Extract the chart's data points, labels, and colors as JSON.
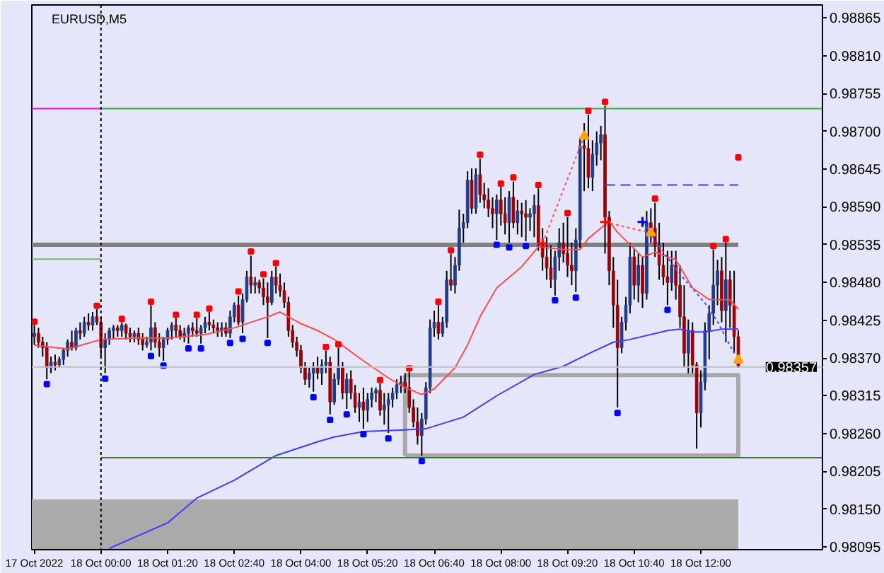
{
  "chart_data": {
    "type": "candlestick",
    "title": "EURUSD,M5",
    "xlim": [
      "2022-10-17T22:37",
      "2022-10-18T14:26"
    ],
    "xticks": [
      {
        "value": "2022-10-17T22:40",
        "label": "17 Oct 2022"
      },
      {
        "value": "2022-10-18T00:00",
        "label": "18 Oct 00:00"
      },
      {
        "value": "2022-10-18T01:20",
        "label": "18 Oct 01:20"
      },
      {
        "value": "2022-10-18T02:40",
        "label": "18 Oct 02:40"
      },
      {
        "value": "2022-10-18T04:00",
        "label": "18 Oct 04:00"
      },
      {
        "value": "2022-10-18T05:20",
        "label": "18 Oct 05:20"
      },
      {
        "value": "2022-10-18T06:40",
        "label": "18 Oct 06:40"
      },
      {
        "value": "2022-10-18T08:00",
        "label": "18 Oct 08:00"
      },
      {
        "value": "2022-10-18T09:20",
        "label": "18 Oct 09:20"
      },
      {
        "value": "2022-10-18T10:40",
        "label": "18 Oct 10:40"
      },
      {
        "value": "2022-10-18T12:00",
        "label": "18 Oct 12:00"
      }
    ],
    "ylim": [
      0.98091,
      0.98884
    ],
    "yticks": [
      {
        "value": 0.98095,
        "label": "0.98095"
      },
      {
        "value": 0.9815,
        "label": "0.98150"
      },
      {
        "value": 0.98205,
        "label": "0.98205"
      },
      {
        "value": 0.9826,
        "label": "0.98260"
      },
      {
        "value": 0.98315,
        "label": "0.98315"
      },
      {
        "value": 0.9837,
        "label": "0.98370"
      },
      {
        "value": 0.98425,
        "label": "0.98425"
      },
      {
        "value": 0.9848,
        "label": "0.98480"
      },
      {
        "value": 0.98535,
        "label": "0.98535"
      },
      {
        "value": 0.9859,
        "label": "0.98590"
      },
      {
        "value": 0.98645,
        "label": "0.98645"
      },
      {
        "value": 0.987,
        "label": "0.98700"
      },
      {
        "value": 0.98755,
        "label": "0.98755"
      },
      {
        "value": 0.9881,
        "label": "0.98810"
      },
      {
        "value": 0.98865,
        "label": "0.98865"
      }
    ],
    "ref_lines": [
      {
        "axis": "y",
        "value": 0.98357,
        "label": "0.98357",
        "color": "#c0c0c0"
      },
      {
        "axis": "x",
        "value": "2022-10-18T00:00",
        "color": "#000000",
        "line_style": "dotted"
      }
    ],
    "series": [
      {
        "color": "#000000",
        "x": [
          "2022-10-17T22:40",
          "2022-10-17T22:45",
          "2022-10-17T22:50",
          "2022-10-17T22:55",
          "2022-10-17T23:00",
          "2022-10-17T23:05",
          "2022-10-17T23:10",
          "2022-10-17T23:15",
          "2022-10-17T23:20",
          "2022-10-17T23:25",
          "2022-10-17T23:30",
          "2022-10-17T23:35",
          "2022-10-17T23:40",
          "2022-10-17T23:45",
          "2022-10-17T23:50",
          "2022-10-17T23:55",
          "2022-10-18T00:00",
          "2022-10-18T00:05",
          "2022-10-18T00:10",
          "2022-10-18T00:15",
          "2022-10-18T00:20",
          "2022-10-18T00:25",
          "2022-10-18T00:30",
          "2022-10-18T00:35",
          "2022-10-18T00:40",
          "2022-10-18T00:45",
          "2022-10-18T00:50",
          "2022-10-18T00:55",
          "2022-10-18T01:00",
          "2022-10-18T01:05",
          "2022-10-18T01:10",
          "2022-10-18T01:15",
          "2022-10-18T01:20",
          "2022-10-18T01:25",
          "2022-10-18T01:30",
          "2022-10-18T01:35",
          "2022-10-18T01:40",
          "2022-10-18T01:45",
          "2022-10-18T01:50",
          "2022-10-18T01:55",
          "2022-10-18T02:00",
          "2022-10-18T02:05",
          "2022-10-18T02:10",
          "2022-10-18T02:15",
          "2022-10-18T02:20",
          "2022-10-18T02:25",
          "2022-10-18T02:30",
          "2022-10-18T02:35",
          "2022-10-18T02:40",
          "2022-10-18T02:45",
          "2022-10-18T02:50",
          "2022-10-18T02:55",
          "2022-10-18T03:00",
          "2022-10-18T03:05",
          "2022-10-18T03:10",
          "2022-10-18T03:15",
          "2022-10-18T03:20",
          "2022-10-18T03:25",
          "2022-10-18T03:30",
          "2022-10-18T03:35",
          "2022-10-18T03:40",
          "2022-10-18T03:45",
          "2022-10-18T03:50",
          "2022-10-18T03:55",
          "2022-10-18T04:00",
          "2022-10-18T04:05",
          "2022-10-18T04:10",
          "2022-10-18T04:15",
          "2022-10-18T04:20",
          "2022-10-18T04:25",
          "2022-10-18T04:30",
          "2022-10-18T04:35",
          "2022-10-18T04:40",
          "2022-10-18T04:45",
          "2022-10-18T04:50",
          "2022-10-18T04:55",
          "2022-10-18T05:00",
          "2022-10-18T05:05",
          "2022-10-18T05:10",
          "2022-10-18T05:15",
          "2022-10-18T05:20",
          "2022-10-18T05:25",
          "2022-10-18T05:30",
          "2022-10-18T05:35",
          "2022-10-18T05:40",
          "2022-10-18T05:45",
          "2022-10-18T05:50",
          "2022-10-18T05:55",
          "2022-10-18T06:00",
          "2022-10-18T06:05",
          "2022-10-18T06:10",
          "2022-10-18T06:15",
          "2022-10-18T06:20",
          "2022-10-18T06:25",
          "2022-10-18T06:30",
          "2022-10-18T06:35",
          "2022-10-18T06:40",
          "2022-10-18T06:45",
          "2022-10-18T06:50",
          "2022-10-18T06:55",
          "2022-10-18T07:00",
          "2022-10-18T07:05",
          "2022-10-18T07:10",
          "2022-10-18T07:15",
          "2022-10-18T07:20",
          "2022-10-18T07:25",
          "2022-10-18T07:30",
          "2022-10-18T07:35",
          "2022-10-18T07:40",
          "2022-10-18T07:45",
          "2022-10-18T07:50",
          "2022-10-18T07:55",
          "2022-10-18T08:00",
          "2022-10-18T08:05",
          "2022-10-18T08:10",
          "2022-10-18T08:15",
          "2022-10-18T08:20",
          "2022-10-18T08:25",
          "2022-10-18T08:30",
          "2022-10-18T08:35",
          "2022-10-18T08:40",
          "2022-10-18T08:45",
          "2022-10-18T08:50",
          "2022-10-18T08:55",
          "2022-10-18T09:00",
          "2022-10-18T09:05",
          "2022-10-18T09:10",
          "2022-10-18T09:15",
          "2022-10-18T09:20",
          "2022-10-18T09:25",
          "2022-10-18T09:30",
          "2022-10-18T09:35",
          "2022-10-18T09:40",
          "2022-10-18T09:45",
          "2022-10-18T09:50",
          "2022-10-18T09:55",
          "2022-10-18T10:00",
          "2022-10-18T10:05",
          "2022-10-18T10:10",
          "2022-10-18T10:15",
          "2022-10-18T10:20",
          "2022-10-18T10:25",
          "2022-10-18T10:30",
          "2022-10-18T10:35",
          "2022-10-18T10:40",
          "2022-10-18T10:45",
          "2022-10-18T10:50",
          "2022-10-18T10:55",
          "2022-10-18T11:00",
          "2022-10-18T11:05",
          "2022-10-18T11:10",
          "2022-10-18T11:15",
          "2022-10-18T11:20",
          "2022-10-18T11:25",
          "2022-10-18T11:30",
          "2022-10-18T11:35",
          "2022-10-18T11:40",
          "2022-10-18T11:45",
          "2022-10-18T11:50",
          "2022-10-18T11:55",
          "2022-10-18T12:00",
          "2022-10-18T12:05",
          "2022-10-18T12:10",
          "2022-10-18T12:15",
          "2022-10-18T12:20",
          "2022-10-18T12:25",
          "2022-10-18T12:30",
          "2022-10-18T12:35",
          "2022-10-18T12:40",
          "2022-10-18T12:45"
        ],
        "ohlc": [
          [
            0.98401,
            0.98418,
            0.98389,
            0.98406
          ],
          [
            0.98406,
            0.98414,
            0.98385,
            0.98393
          ],
          [
            0.98393,
            0.98401,
            0.98372,
            0.98385
          ],
          [
            0.98385,
            0.98393,
            0.98339,
            0.98356
          ],
          [
            0.98356,
            0.98372,
            0.98348,
            0.98364
          ],
          [
            0.98364,
            0.98375,
            0.98352,
            0.9836
          ],
          [
            0.9836,
            0.98372,
            0.98356,
            0.98368
          ],
          [
            0.98368,
            0.98385,
            0.9836,
            0.98381
          ],
          [
            0.98381,
            0.98397,
            0.98372,
            0.98393
          ],
          [
            0.98393,
            0.9841,
            0.98381,
            0.98385
          ],
          [
            0.98385,
            0.98414,
            0.98381,
            0.9841
          ],
          [
            0.9841,
            0.98422,
            0.98397,
            0.98406
          ],
          [
            0.98406,
            0.9843,
            0.98401,
            0.98422
          ],
          [
            0.98422,
            0.98435,
            0.9841,
            0.98418
          ],
          [
            0.98418,
            0.98437,
            0.9841,
            0.9843
          ],
          [
            0.9843,
            0.98441,
            0.98418,
            0.98422
          ],
          [
            0.98422,
            0.9843,
            0.98372,
            0.98385
          ],
          [
            0.98385,
            0.98406,
            0.98348,
            0.98397
          ],
          [
            0.98397,
            0.98414,
            0.98389,
            0.9841
          ],
          [
            0.9841,
            0.98418,
            0.98397,
            0.98414
          ],
          [
            0.98414,
            0.98418,
            0.98401,
            0.9841
          ],
          [
            0.9841,
            0.98422,
            0.98401,
            0.98418
          ],
          [
            0.98418,
            0.9842,
            0.98397,
            0.98406
          ],
          [
            0.98406,
            0.98414,
            0.98393,
            0.98401
          ],
          [
            0.98401,
            0.9841,
            0.98393,
            0.98406
          ],
          [
            0.98406,
            0.98414,
            0.98389,
            0.98397
          ],
          [
            0.98397,
            0.98406,
            0.98381,
            0.98389
          ],
          [
            0.98389,
            0.98401,
            0.98385,
            0.98393
          ],
          [
            0.98393,
            0.98447,
            0.98381,
            0.98414
          ],
          [
            0.98414,
            0.98422,
            0.98385,
            0.98393
          ],
          [
            0.98393,
            0.98406,
            0.98372,
            0.98385
          ],
          [
            0.98385,
            0.98401,
            0.98366,
            0.98397
          ],
          [
            0.98397,
            0.98414,
            0.98389,
            0.9841
          ],
          [
            0.9841,
            0.98422,
            0.98397,
            0.98418
          ],
          [
            0.98418,
            0.98428,
            0.98401,
            0.9841
          ],
          [
            0.9841,
            0.98418,
            0.98397,
            0.98401
          ],
          [
            0.98401,
            0.98414,
            0.98393,
            0.98406
          ],
          [
            0.98406,
            0.98418,
            0.98391,
            0.98414
          ],
          [
            0.98414,
            0.98422,
            0.98401,
            0.9841
          ],
          [
            0.9841,
            0.98428,
            0.98401,
            0.98406
          ],
          [
            0.98406,
            0.98418,
            0.98391,
            0.98414
          ],
          [
            0.98414,
            0.9843,
            0.98406,
            0.98422
          ],
          [
            0.98422,
            0.98437,
            0.9841,
            0.98418
          ],
          [
            0.98418,
            0.98426,
            0.98406,
            0.98414
          ],
          [
            0.98414,
            0.98422,
            0.98401,
            0.9841
          ],
          [
            0.9841,
            0.98422,
            0.98401,
            0.98414
          ],
          [
            0.98414,
            0.98422,
            0.98401,
            0.98406
          ],
          [
            0.98406,
            0.98439,
            0.98399,
            0.9843
          ],
          [
            0.9843,
            0.98451,
            0.98422,
            0.98447
          ],
          [
            0.98447,
            0.98461,
            0.98418,
            0.98422
          ],
          [
            0.98422,
            0.98464,
            0.98406,
            0.98455
          ],
          [
            0.98455,
            0.98497,
            0.98451,
            0.98488
          ],
          [
            0.98488,
            0.98519,
            0.98464,
            0.98476
          ],
          [
            0.98476,
            0.98488,
            0.98464,
            0.9848
          ],
          [
            0.9848,
            0.98484,
            0.98464,
            0.98472
          ],
          [
            0.98472,
            0.98486,
            0.98447,
            0.98459
          ],
          [
            0.98459,
            0.9848,
            0.98399,
            0.98451
          ],
          [
            0.98451,
            0.98497,
            0.98447,
            0.98488
          ],
          [
            0.98488,
            0.98503,
            0.98464,
            0.98476
          ],
          [
            0.98476,
            0.98493,
            0.98459,
            0.98468
          ],
          [
            0.98468,
            0.9848,
            0.98443,
            0.98451
          ],
          [
            0.98451,
            0.98459,
            0.98401,
            0.9841
          ],
          [
            0.9841,
            0.98418,
            0.98385,
            0.98393
          ],
          [
            0.98393,
            0.98401,
            0.98372,
            0.98381
          ],
          [
            0.98381,
            0.98389,
            0.98348,
            0.98356
          ],
          [
            0.98356,
            0.98364,
            0.98331,
            0.98339
          ],
          [
            0.98339,
            0.98356,
            0.98327,
            0.98348
          ],
          [
            0.98348,
            0.98364,
            0.98321,
            0.98356
          ],
          [
            0.98356,
            0.98372,
            0.98339,
            0.98348
          ],
          [
            0.98348,
            0.98368,
            0.98331,
            0.9836
          ],
          [
            0.9836,
            0.98381,
            0.98348,
            0.98364
          ],
          [
            0.98364,
            0.98372,
            0.98288,
            0.98306
          ],
          [
            0.98306,
            0.98348,
            0.98302,
            0.98339
          ],
          [
            0.98339,
            0.98385,
            0.98331,
            0.98356
          ],
          [
            0.98356,
            0.98364,
            0.9831,
            0.98319
          ],
          [
            0.98319,
            0.98348,
            0.98296,
            0.98339
          ],
          [
            0.98339,
            0.98352,
            0.9831,
            0.98319
          ],
          [
            0.98319,
            0.98331,
            0.9829,
            0.98298
          ],
          [
            0.98298,
            0.98319,
            0.98277,
            0.98306
          ],
          [
            0.98306,
            0.98327,
            0.98267,
            0.98294
          ],
          [
            0.98294,
            0.98319,
            0.98277,
            0.9831
          ],
          [
            0.9831,
            0.98327,
            0.98298,
            0.98319
          ],
          [
            0.98319,
            0.98327,
            0.98306,
            0.98323
          ],
          [
            0.98323,
            0.98333,
            0.98286,
            0.98294
          ],
          [
            0.98294,
            0.98319,
            0.98273,
            0.98302
          ],
          [
            0.98302,
            0.98319,
            0.98261,
            0.9831
          ],
          [
            0.9831,
            0.98327,
            0.98298,
            0.98319
          ],
          [
            0.98319,
            0.98339,
            0.9831,
            0.98331
          ],
          [
            0.98331,
            0.98344,
            0.98319,
            0.98335
          ],
          [
            0.98335,
            0.98348,
            0.98319,
            0.98327
          ],
          [
            0.98327,
            0.9835,
            0.9829,
            0.98298
          ],
          [
            0.98298,
            0.9831,
            0.98269,
            0.98277
          ],
          [
            0.98277,
            0.98298,
            0.98244,
            0.98257
          ],
          [
            0.98257,
            0.9829,
            0.98228,
            0.98281
          ],
          [
            0.98281,
            0.98335,
            0.98273,
            0.98327
          ],
          [
            0.98327,
            0.98426,
            0.98319,
            0.98414
          ],
          [
            0.98414,
            0.98439,
            0.98401,
            0.98422
          ],
          [
            0.98422,
            0.98447,
            0.98397,
            0.98406
          ],
          [
            0.98406,
            0.9843,
            0.98401,
            0.98422
          ],
          [
            0.98422,
            0.98497,
            0.98414,
            0.98484
          ],
          [
            0.98484,
            0.98522,
            0.98468,
            0.98476
          ],
          [
            0.98476,
            0.98517,
            0.98464,
            0.98505
          ],
          [
            0.98505,
            0.98586,
            0.98497,
            0.98559
          ],
          [
            0.98559,
            0.9858,
            0.98538,
            0.98567
          ],
          [
            0.98567,
            0.98642,
            0.98559,
            0.98629
          ],
          [
            0.98629,
            0.98646,
            0.9858,
            0.98588
          ],
          [
            0.98588,
            0.98646,
            0.9858,
            0.98637
          ],
          [
            0.98637,
            0.9866,
            0.98596,
            0.98608
          ],
          [
            0.98608,
            0.98625,
            0.98588,
            0.986
          ],
          [
            0.986,
            0.98617,
            0.98575,
            0.98588
          ],
          [
            0.98588,
            0.98604,
            0.98559,
            0.9858
          ],
          [
            0.9858,
            0.98608,
            0.98542,
            0.986
          ],
          [
            0.986,
            0.98619,
            0.98563,
            0.9858
          ],
          [
            0.9858,
            0.98604,
            0.9855,
            0.98567
          ],
          [
            0.98567,
            0.98613,
            0.98538,
            0.98604
          ],
          [
            0.98604,
            0.98627,
            0.98559,
            0.98567
          ],
          [
            0.98567,
            0.986,
            0.9855,
            0.98584
          ],
          [
            0.98584,
            0.98596,
            0.98546,
            0.9858
          ],
          [
            0.9858,
            0.986,
            0.9854,
            0.98575
          ],
          [
            0.98575,
            0.98588,
            0.98555,
            0.9858
          ],
          [
            0.9858,
            0.98608,
            0.98546,
            0.98592
          ],
          [
            0.98592,
            0.98617,
            0.98526,
            0.98538
          ],
          [
            0.98538,
            0.98559,
            0.98497,
            0.98517
          ],
          [
            0.98517,
            0.98546,
            0.98484,
            0.98501
          ],
          [
            0.98501,
            0.98534,
            0.98472,
            0.98484
          ],
          [
            0.98484,
            0.98526,
            0.98461,
            0.98517
          ],
          [
            0.98517,
            0.98559,
            0.98497,
            0.98538
          ],
          [
            0.98538,
            0.98567,
            0.98509,
            0.98522
          ],
          [
            0.98522,
            0.98575,
            0.98488,
            0.98505
          ],
          [
            0.98505,
            0.98538,
            0.98476,
            0.98497
          ],
          [
            0.98497,
            0.98559,
            0.98466,
            0.98542
          ],
          [
            0.98542,
            0.98691,
            0.9853,
            0.98679
          ],
          [
            0.98679,
            0.98712,
            0.98613,
            0.98675
          ],
          [
            0.98675,
            0.98724,
            0.98617,
            0.98633
          ],
          [
            0.98633,
            0.98687,
            0.98613,
            0.98666
          ],
          [
            0.98666,
            0.987,
            0.9865,
            0.98683
          ],
          [
            0.98683,
            0.98708,
            0.98658,
            0.98695
          ],
          [
            0.98695,
            0.98737,
            0.98522,
            0.98575
          ],
          [
            0.98575,
            0.98584,
            0.98476,
            0.98497
          ],
          [
            0.98497,
            0.98517,
            0.98414,
            0.98447
          ],
          [
            0.98447,
            0.98484,
            0.98298,
            0.98385
          ],
          [
            0.98385,
            0.9843,
            0.98377,
            0.98422
          ],
          [
            0.98422,
            0.98459,
            0.9841,
            0.98447
          ],
          [
            0.98447,
            0.98538,
            0.98435,
            0.98517
          ],
          [
            0.98517,
            0.9853,
            0.98455,
            0.98476
          ],
          [
            0.98476,
            0.98522,
            0.98451,
            0.98505
          ],
          [
            0.98505,
            0.98517,
            0.98443,
            0.98464
          ],
          [
            0.98464,
            0.98584,
            0.98455,
            0.98567
          ],
          [
            0.98567,
            0.98588,
            0.98538,
            0.98559
          ],
          [
            0.98559,
            0.98596,
            0.98517,
            0.98534
          ],
          [
            0.98534,
            0.98567,
            0.98484,
            0.98505
          ],
          [
            0.98505,
            0.98538,
            0.98476,
            0.98488
          ],
          [
            0.98488,
            0.98526,
            0.98447,
            0.9848
          ],
          [
            0.9848,
            0.98526,
            0.98468,
            0.98505
          ],
          [
            0.98505,
            0.98526,
            0.98455,
            0.98476
          ],
          [
            0.98476,
            0.98505,
            0.98414,
            0.9843
          ],
          [
            0.9843,
            0.98476,
            0.98356,
            0.98377
          ],
          [
            0.98377,
            0.98426,
            0.98348,
            0.9841
          ],
          [
            0.9841,
            0.98422,
            0.98348,
            0.9836
          ],
          [
            0.9836,
            0.98364,
            0.98238,
            0.9829
          ],
          [
            0.9829,
            0.98352,
            0.98269,
            0.98335
          ],
          [
            0.98335,
            0.98422,
            0.98323,
            0.9841
          ],
          [
            0.9841,
            0.98447,
            0.98368,
            0.98435
          ],
          [
            0.98435,
            0.98528,
            0.98418,
            0.98476
          ],
          [
            0.98476,
            0.98513,
            0.98447,
            0.98497
          ],
          [
            0.98497,
            0.98517,
            0.98422,
            0.98439
          ],
          [
            0.98439,
            0.98538,
            0.98393,
            0.98484
          ],
          [
            0.98484,
            0.98497,
            0.98414,
            0.98447
          ],
          [
            0.98447,
            0.98497,
            0.98377,
            0.98401
          ],
          [
            0.98401,
            0.9841,
            0.98356,
            0.98357
          ]
        ],
        "colors": [
          "#203c8c",
          "#a00000",
          "#a00000",
          "#a00000",
          "#203c8c",
          "#a00000",
          "#203c8c",
          "#203c8c",
          "#203c8c",
          "#a00000",
          "#203c8c",
          "#a00000",
          "#203c8c",
          "#a00000",
          "#203c8c",
          "#a00000",
          "#a00000",
          "#203c8c",
          "#203c8c",
          "#203c8c",
          "#a00000",
          "#203c8c",
          "#a00000",
          "#a00000",
          "#203c8c",
          "#a00000",
          "#a00000",
          "#203c8c",
          "#203c8c",
          "#a00000",
          "#a00000",
          "#203c8c",
          "#203c8c",
          "#203c8c",
          "#a00000",
          "#a00000",
          "#203c8c",
          "#203c8c",
          "#a00000",
          "#a00000",
          "#203c8c",
          "#203c8c",
          "#a00000",
          "#a00000",
          "#a00000",
          "#203c8c",
          "#a00000",
          "#203c8c",
          "#203c8c",
          "#a00000",
          "#203c8c",
          "#203c8c",
          "#a00000",
          "#203c8c",
          "#a00000",
          "#a00000",
          "#a00000",
          "#203c8c",
          "#a00000",
          "#a00000",
          "#a00000",
          "#a00000",
          "#a00000",
          "#a00000",
          "#a00000",
          "#a00000",
          "#203c8c",
          "#203c8c",
          "#a00000",
          "#203c8c",
          "#203c8c",
          "#a00000",
          "#203c8c",
          "#203c8c",
          "#a00000",
          "#203c8c",
          "#a00000",
          "#a00000",
          "#203c8c",
          "#a00000",
          "#203c8c",
          "#203c8c",
          "#203c8c",
          "#a00000",
          "#203c8c",
          "#203c8c",
          "#203c8c",
          "#203c8c",
          "#203c8c",
          "#a00000",
          "#a00000",
          "#a00000",
          "#a00000",
          "#203c8c",
          "#203c8c",
          "#203c8c",
          "#203c8c",
          "#a00000",
          "#203c8c",
          "#203c8c",
          "#a00000",
          "#203c8c",
          "#203c8c",
          "#203c8c",
          "#203c8c",
          "#a00000",
          "#203c8c",
          "#a00000",
          "#a00000",
          "#a00000",
          "#a00000",
          "#203c8c",
          "#a00000",
          "#a00000",
          "#203c8c",
          "#a00000",
          "#203c8c",
          "#a00000",
          "#a00000",
          "#203c8c",
          "#203c8c",
          "#a00000",
          "#a00000",
          "#a00000",
          "#a00000",
          "#203c8c",
          "#203c8c",
          "#a00000",
          "#a00000",
          "#a00000",
          "#203c8c",
          "#203c8c",
          "#a00000",
          "#a00000",
          "#203c8c",
          "#203c8c",
          "#203c8c",
          "#a00000",
          "#a00000",
          "#a00000",
          "#a00000",
          "#203c8c",
          "#203c8c",
          "#203c8c",
          "#a00000",
          "#203c8c",
          "#a00000",
          "#203c8c",
          "#a00000",
          "#a00000",
          "#a00000",
          "#a00000",
          "#a00000",
          "#203c8c",
          "#a00000",
          "#a00000",
          "#a00000",
          "#203c8c",
          "#a00000",
          "#a00000",
          "#203c8c",
          "#203c8c",
          "#203c8c",
          "#203c8c",
          "#203c8c",
          "#a00000",
          "#203c8c",
          "#a00000",
          "#a00000",
          "#a00000"
        ]
      },
      {
        "type": "line",
        "color": "#ff4a4a",
        "x": [
          "2022-10-17T22:40",
          "2022-10-17T23:20",
          "2022-10-18T00:00",
          "2022-10-18T00:40",
          "2022-10-18T01:20",
          "2022-10-18T02:05",
          "2022-10-18T02:40",
          "2022-10-18T03:20",
          "2022-10-18T03:35",
          "2022-10-18T04:00",
          "2022-10-18T04:20",
          "2022-10-18T04:40",
          "2022-10-18T05:15",
          "2022-10-18T05:45",
          "2022-10-18T06:05",
          "2022-10-18T06:25",
          "2022-10-18T06:40",
          "2022-10-18T07:05",
          "2022-10-18T07:20",
          "2022-10-18T07:35",
          "2022-10-18T07:55",
          "2022-10-18T08:25",
          "2022-10-18T08:45",
          "2022-10-18T09:15",
          "2022-10-18T09:35",
          "2022-10-18T09:45",
          "2022-10-18T10:00",
          "2022-10-18T10:10",
          "2022-10-18T10:20",
          "2022-10-18T10:50",
          "2022-10-18T11:05",
          "2022-10-18T11:30",
          "2022-10-18T11:50",
          "2022-10-18T12:10",
          "2022-10-18T12:35",
          "2022-10-18T12:45"
        ],
        "values": [
          0.98389,
          0.98383,
          0.98397,
          0.98399,
          0.98399,
          0.98404,
          0.98414,
          0.9843,
          0.98437,
          0.9842,
          0.9841,
          0.98397,
          0.98366,
          0.98341,
          0.98327,
          0.98317,
          0.98325,
          0.98356,
          0.98389,
          0.9843,
          0.98472,
          0.98503,
          0.98532,
          0.98528,
          0.98528,
          0.98544,
          0.98559,
          0.98569,
          0.98553,
          0.98517,
          0.98524,
          0.98513,
          0.98472,
          0.98455,
          0.98455,
          0.98441
        ]
      },
      {
        "type": "line",
        "color": "#3c3cff",
        "x": [
          "2022-10-18T00:10",
          "2022-10-18T01:20",
          "2022-10-18T01:55",
          "2022-10-18T02:40",
          "2022-10-18T03:30",
          "2022-10-18T04:20",
          "2022-10-18T04:40",
          "2022-10-18T05:15",
          "2022-10-18T06:00",
          "2022-10-18T06:30",
          "2022-10-18T07:15",
          "2022-10-18T07:55",
          "2022-10-18T08:40",
          "2022-10-18T09:15",
          "2022-10-18T09:50",
          "2022-10-18T10:15",
          "2022-10-18T10:35",
          "2022-10-18T11:20",
          "2022-10-18T11:35",
          "2022-10-18T11:50",
          "2022-10-18T12:05",
          "2022-10-18T12:25",
          "2022-10-18T12:45"
        ],
        "values": [
          0.98093,
          0.9813,
          0.98166,
          0.98192,
          0.98228,
          0.98248,
          0.98255,
          0.98263,
          0.98265,
          0.98267,
          0.98284,
          0.98315,
          0.98346,
          0.98358,
          0.98379,
          0.98393,
          0.98397,
          0.9841,
          0.98412,
          0.98408,
          0.98408,
          0.98412,
          0.98412
        ]
      },
      {
        "type": "scatter",
        "marker": "square",
        "color": "#ff0000",
        "x": [
          "2022-10-17T22:40",
          "2022-10-17T23:55",
          "2022-10-18T00:25",
          "2022-10-18T01:00",
          "2022-10-18T01:30",
          "2022-10-18T01:55",
          "2022-10-18T02:10",
          "2022-10-18T02:45",
          "2022-10-18T03:00",
          "2022-10-18T03:15",
          "2022-10-18T03:30",
          "2022-10-18T04:30",
          "2022-10-18T04:45",
          "2022-10-18T05:35",
          "2022-10-18T06:10",
          "2022-10-18T06:45",
          "2022-10-18T07:00",
          "2022-10-18T07:35",
          "2022-10-18T08:00",
          "2022-10-18T08:15",
          "2022-10-18T08:45",
          "2022-10-18T09:20",
          "2022-10-18T09:45",
          "2022-10-18T10:05",
          "2022-10-18T11:05",
          "2022-10-18T12:15",
          "2022-10-18T12:30",
          "2022-10-18T12:45"
        ],
        "values": [
          0.98423,
          0.98446,
          0.98427,
          0.98452,
          0.98433,
          0.98433,
          0.98442,
          0.98467,
          0.98525,
          0.98492,
          0.98508,
          0.98386,
          0.9839,
          0.98338,
          0.98355,
          0.98452,
          0.98527,
          0.98666,
          0.98624,
          0.98633,
          0.98622,
          0.98581,
          0.9873,
          0.98743,
          0.98602,
          0.98533,
          0.98543,
          0.98662
        ]
      },
      {
        "type": "scatter",
        "marker": "square",
        "color": "#0000ff",
        "x": [
          "2022-10-17T22:55",
          "2022-10-18T00:05",
          "2022-10-18T01:00",
          "2022-10-18T01:15",
          "2022-10-18T01:45",
          "2022-10-18T02:00",
          "2022-10-18T02:35",
          "2022-10-18T02:50",
          "2022-10-18T03:20",
          "2022-10-18T04:15",
          "2022-10-18T04:35",
          "2022-10-18T04:55",
          "2022-10-18T05:15",
          "2022-10-18T05:45",
          "2022-10-18T06:25",
          "2022-10-18T07:55",
          "2022-10-18T08:10",
          "2022-10-18T08:30",
          "2022-10-18T09:05",
          "2022-10-18T09:30",
          "2022-10-18T10:20",
          "2022-10-18T11:20"
        ],
        "values": [
          0.98332,
          0.9834,
          0.98373,
          0.98359,
          0.98384,
          0.98384,
          0.98392,
          0.98398,
          0.98392,
          0.98313,
          0.9828,
          0.98288,
          0.98259,
          0.98253,
          0.9822,
          0.98535,
          0.98531,
          0.98533,
          0.98454,
          0.98458,
          0.9829,
          0.9844
        ]
      },
      {
        "type": "line",
        "color": "#ff00ff",
        "x": [
          "2022-10-17T22:37",
          "2022-10-18T00:00"
        ],
        "values": [
          0.98733,
          0.98733
        ]
      },
      {
        "type": "line",
        "color": "#3caa3c",
        "x": [
          "2022-10-18T00:00",
          "2022-10-18T14:26"
        ],
        "values": [
          0.98733,
          0.98733
        ]
      },
      {
        "type": "line",
        "color": "#66bb66",
        "x": [
          "2022-10-17T22:37",
          "2022-10-18T00:00"
        ],
        "values": [
          0.98514,
          0.98514
        ]
      },
      {
        "type": "line",
        "color": "#2f7f2f",
        "x": [
          "2022-10-18T00:00",
          "2022-10-18T14:26"
        ],
        "values": [
          0.98225,
          0.98225
        ]
      },
      {
        "type": "line",
        "color": "#808080",
        "x": [
          "2022-10-17T22:37",
          "2022-10-18T12:45"
        ],
        "values": [
          0.98535,
          0.98535
        ]
      },
      {
        "type": "line",
        "color": "#3a3aff",
        "line_style": "dashed",
        "x": [
          "2022-10-18T10:05",
          "2022-10-18T12:45"
        ],
        "values": [
          0.98622,
          0.98622
        ]
      },
      {
        "type": "line",
        "color": "#a8a8a8",
        "x": [
          "2022-10-18T06:05",
          "2022-10-18T12:45",
          "2022-10-18T12:45",
          "2022-10-18T06:05"
        ],
        "values": [
          0.98345,
          0.98345,
          0.98228,
          0.98228
        ]
      },
      {
        "type": "line",
        "color": "#a8a8a8",
        "x": [
          "2022-10-18T06:05",
          "2022-10-18T06:05"
        ],
        "values": [
          0.98345,
          0.98228
        ]
      },
      {
        "type": "area",
        "color": "#aaaaaa",
        "x": [
          "2022-10-17T22:37",
          "2022-10-18T12:45"
        ],
        "values": [
          0.98164,
          0.98164
        ]
      },
      {
        "type": "line",
        "color": "#ff4d4d",
        "line_style": "dotted",
        "x": [
          "2022-10-18T08:50",
          "2022-10-18T09:40"
        ],
        "values": [
          0.98537,
          0.98693
        ]
      },
      {
        "type": "line",
        "color": "#ff4d4d",
        "line_style": "dotted",
        "x": [
          "2022-10-18T10:05",
          "2022-10-18T11:00"
        ],
        "values": [
          0.98568,
          0.98552
        ]
      },
      {
        "type": "line",
        "color": "#4d4dff",
        "line_style": "dotted",
        "x": [
          "2022-10-18T10:50",
          "2022-10-18T11:20",
          "2022-10-18T11:35",
          "2022-10-18T12:05",
          "2022-10-18T12:20",
          "2022-10-18T12:40"
        ],
        "values": [
          0.98568,
          0.98516,
          0.98492,
          0.9845,
          0.98423,
          0.98377
        ]
      },
      {
        "type": "scatter",
        "marker": "triangle",
        "color": "#ffa500",
        "x": [
          "2022-10-18T09:40",
          "2022-10-18T11:00",
          "2022-10-18T12:45"
        ],
        "values": [
          0.98693,
          0.98552,
          0.98367
        ]
      },
      {
        "type": "scatter",
        "marker": "cross",
        "color": "#ff0000",
        "x": [
          "2022-10-18T08:50",
          "2022-10-18T10:05"
        ],
        "values": [
          0.98537,
          0.98568
        ]
      },
      {
        "type": "scatter",
        "marker": "cross",
        "color": "#0000ff",
        "x": [
          "2022-10-18T10:50"
        ],
        "values": [
          0.98568
        ]
      }
    ]
  }
}
